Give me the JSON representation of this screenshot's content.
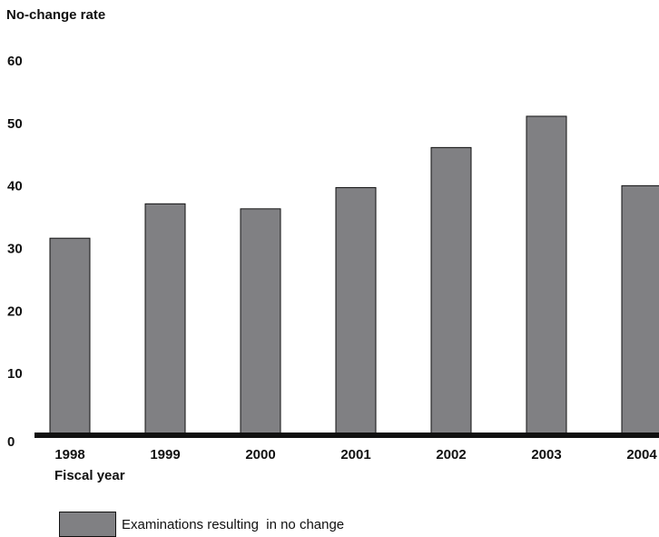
{
  "chart_data": {
    "type": "bar",
    "ylabel": "No-change rate",
    "xlabel": "Fiscal year",
    "categories": [
      "1998",
      "1999",
      "2000",
      "2001",
      "2002",
      "2003",
      "2004"
    ],
    "series": [
      {
        "name": "Examinations resulting  in no change",
        "values": [
          31.5,
          37,
          36.2,
          39.6,
          46,
          51,
          39.9
        ]
      }
    ],
    "yticks": [
      0,
      10,
      20,
      30,
      40,
      50,
      60
    ],
    "ylim": [
      0,
      60
    ],
    "bar_color": "#808083",
    "legend_position": "bottom-left",
    "grid": false
  }
}
